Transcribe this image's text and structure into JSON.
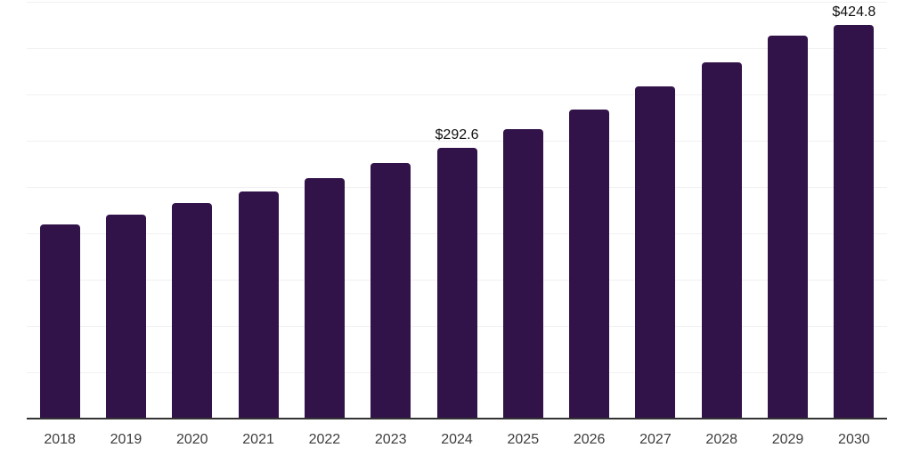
{
  "chart": {
    "background_color": "#ffffff",
    "bar_color": "#321349",
    "grid_color": "#f1f1f3",
    "axis_color": "#333333",
    "value_label_color": "#111111",
    "tick_label_color": "#3d3d3d"
  },
  "chart_data": {
    "type": "bar",
    "title": "",
    "xlabel": "",
    "ylabel": "",
    "categories": [
      "2018",
      "2019",
      "2020",
      "2021",
      "2022",
      "2023",
      "2024",
      "2025",
      "2026",
      "2027",
      "2028",
      "2029",
      "2030"
    ],
    "values": [
      209.6,
      220.2,
      232.7,
      245.2,
      259.6,
      276.0,
      292.6,
      312.5,
      333.7,
      358.7,
      384.6,
      413.5,
      424.8
    ],
    "bar_labels": [
      "",
      "",
      "",
      "",
      "",
      "",
      "$292.6",
      "",
      "",
      "",
      "",
      "",
      "$424.8"
    ],
    "ylim": [
      0,
      450
    ],
    "grid_step": 50,
    "grid": true,
    "legend_position": "none",
    "y_axis_tick_labels_visible": false
  }
}
